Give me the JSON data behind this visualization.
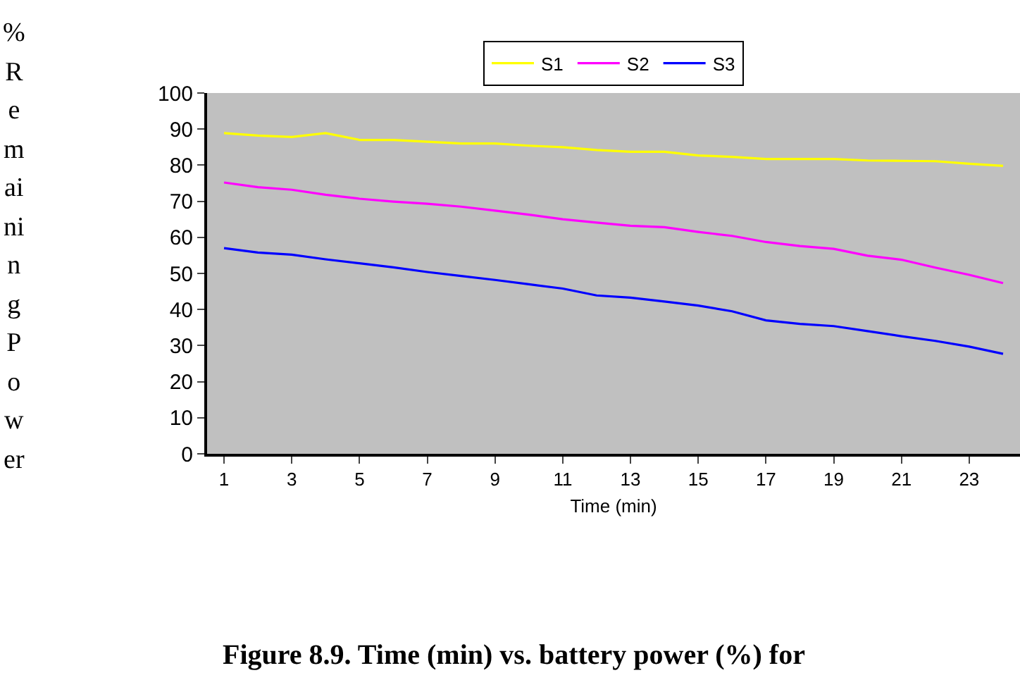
{
  "chart_data": {
    "type": "line",
    "xlabel": "Time (min)",
    "ylabel": "% Remaining Power",
    "x": [
      1,
      2,
      3,
      4,
      5,
      6,
      7,
      8,
      9,
      10,
      11,
      12,
      13,
      14,
      15,
      16,
      17,
      18,
      19,
      20,
      21,
      22,
      23,
      24
    ],
    "series": [
      {
        "name": "S1",
        "color": "#ffff00",
        "values": [
          88.9,
          88.2,
          87.8,
          88.9,
          87.0,
          87.0,
          86.5,
          86.0,
          86.0,
          85.4,
          85.0,
          84.2,
          83.7,
          83.7,
          82.7,
          82.3,
          81.7,
          81.7,
          81.7,
          81.3,
          81.2,
          81.1,
          80.4,
          79.8
        ]
      },
      {
        "name": "S2",
        "color": "#ff00ff",
        "values": [
          75.2,
          73.9,
          73.2,
          71.8,
          70.7,
          69.9,
          69.3,
          68.5,
          67.4,
          66.3,
          65.0,
          64.1,
          63.2,
          62.8,
          61.5,
          60.4,
          58.7,
          57.6,
          56.8,
          54.9,
          53.8,
          51.6,
          49.6,
          47.3
        ]
      },
      {
        "name": "S3",
        "color": "#0000ff",
        "values": [
          57.0,
          55.8,
          55.2,
          53.9,
          52.8,
          51.7,
          50.4,
          49.3,
          48.2,
          47.0,
          45.8,
          43.9,
          43.3,
          42.2,
          41.1,
          39.5,
          37.0,
          36.0,
          35.4,
          34.0,
          32.6,
          31.3,
          29.7,
          27.7
        ]
      }
    ],
    "xlim": [
      0.5,
      24.5
    ],
    "xticks": [
      1,
      3,
      5,
      7,
      9,
      11,
      13,
      15,
      17,
      19,
      21,
      23
    ],
    "ylim": [
      0,
      100
    ],
    "yticks": [
      0,
      10,
      20,
      30,
      40,
      50,
      60,
      70,
      80,
      90,
      100
    ],
    "grid": false,
    "legend": "top",
    "marker": "none",
    "line_style": "solid",
    "annotations": [
      "Figure 8.9. Time (min) vs. battery power (%) for"
    ]
  }
}
